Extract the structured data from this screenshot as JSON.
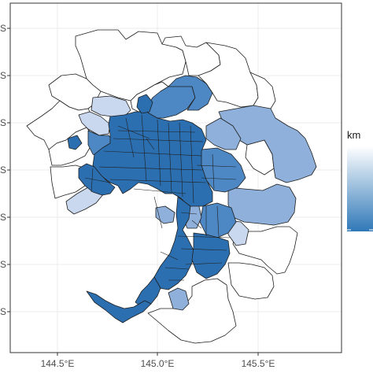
{
  "chart_data": {
    "type": "choropleth map",
    "x_ticks": [
      "144.5°E",
      "145.0°E",
      "145.5°E"
    ],
    "y_ticks": [
      "S",
      "S",
      "S",
      "S",
      "S",
      "S",
      "S"
    ],
    "legend": {
      "title": "km",
      "position": "right",
      "colors": [
        "#ffffff",
        "#2f78b8"
      ]
    },
    "grid": true,
    "colors": {
      "panel": "#ffffff",
      "grid": "#ebebeb",
      "border": "#333333",
      "outline": "#1e1e1e",
      "dark": "#2c6fb0",
      "mid": "#4d88c4",
      "light": "#8fb0da",
      "pale": "#c9d8ee",
      "white": "#ffffff"
    }
  }
}
